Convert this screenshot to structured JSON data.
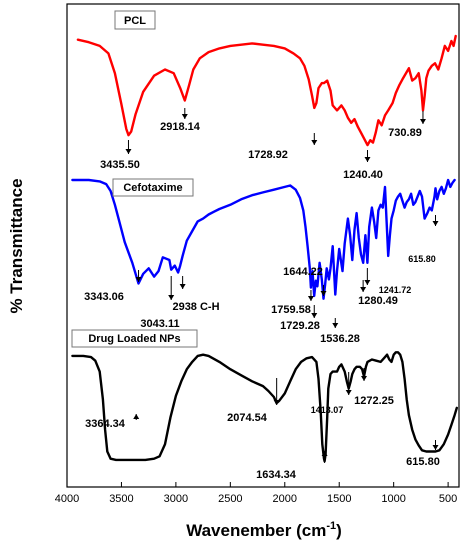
{
  "chart_data": {
    "type": "line",
    "title": "",
    "xlabel_main": "Wavenember (cm",
    "xlabel_sup": "-1",
    "xlabel_close": ")",
    "ylabel": "% Transmittance",
    "xlim": [
      4000,
      400
    ],
    "x_reversed": true,
    "x_ticks": [
      4000,
      3500,
      3000,
      2500,
      2000,
      1500,
      1000,
      500
    ],
    "grid": false,
    "series": [
      {
        "name": "PCL",
        "color": "#ff0000",
        "points": [
          [
            3900,
            97
          ],
          [
            3800,
            95
          ],
          [
            3700,
            92
          ],
          [
            3620,
            86
          ],
          [
            3560,
            70
          ],
          [
            3500,
            45
          ],
          [
            3455,
            25
          ],
          [
            3435,
            20
          ],
          [
            3410,
            23
          ],
          [
            3370,
            37
          ],
          [
            3300,
            55
          ],
          [
            3200,
            68
          ],
          [
            3100,
            73
          ],
          [
            3020,
            70
          ],
          [
            2960,
            58
          ],
          [
            2918,
            48
          ],
          [
            2880,
            60
          ],
          [
            2840,
            73
          ],
          [
            2780,
            82
          ],
          [
            2700,
            87
          ],
          [
            2600,
            90
          ],
          [
            2500,
            92
          ],
          [
            2400,
            93
          ],
          [
            2300,
            94
          ],
          [
            2200,
            93
          ],
          [
            2100,
            92
          ],
          [
            2000,
            90
          ],
          [
            1920,
            86
          ],
          [
            1860,
            82
          ],
          [
            1820,
            76
          ],
          [
            1780,
            65
          ],
          [
            1750,
            52
          ],
          [
            1729,
            42
          ],
          [
            1710,
            46
          ],
          [
            1690,
            58
          ],
          [
            1660,
            62
          ],
          [
            1640,
            62
          ],
          [
            1610,
            64
          ],
          [
            1580,
            56
          ],
          [
            1560,
            44
          ],
          [
            1520,
            40
          ],
          [
            1480,
            44
          ],
          [
            1450,
            40
          ],
          [
            1420,
            34
          ],
          [
            1390,
            30
          ],
          [
            1360,
            33
          ],
          [
            1330,
            27
          ],
          [
            1300,
            22
          ],
          [
            1270,
            17
          ],
          [
            1240,
            12
          ],
          [
            1215,
            16
          ],
          [
            1190,
            14
          ],
          [
            1165,
            22
          ],
          [
            1140,
            32
          ],
          [
            1110,
            28
          ],
          [
            1080,
            36
          ],
          [
            1050,
            40
          ],
          [
            1010,
            46
          ],
          [
            980,
            54
          ],
          [
            950,
            60
          ],
          [
            920,
            65
          ],
          [
            880,
            71
          ],
          [
            860,
            74
          ],
          [
            830,
            64
          ],
          [
            800,
            66
          ],
          [
            770,
            70
          ],
          [
            745,
            56
          ],
          [
            731,
            40
          ],
          [
            715,
            52
          ],
          [
            700,
            66
          ],
          [
            680,
            72
          ],
          [
            650,
            76
          ],
          [
            620,
            78
          ],
          [
            590,
            73
          ],
          [
            560,
            82
          ],
          [
            530,
            92
          ],
          [
            500,
            88
          ],
          [
            470,
            96
          ],
          [
            450,
            92
          ],
          [
            430,
            100
          ]
        ],
        "peaks": [
          {
            "x": 3435.5,
            "label": "3435.50"
          },
          {
            "x": 2918.14,
            "label": "2918.14"
          },
          {
            "x": 1728.92,
            "label": "1728.92"
          },
          {
            "x": 1240.4,
            "label": "1240.40"
          },
          {
            "x": 730.89,
            "label": "730.89"
          }
        ]
      },
      {
        "name": "Cefotaxime",
        "color": "#0000ff",
        "points": [
          [
            3950,
            100
          ],
          [
            3800,
            100
          ],
          [
            3700,
            99
          ],
          [
            3640,
            97
          ],
          [
            3600,
            92
          ],
          [
            3560,
            82
          ],
          [
            3520,
            70
          ],
          [
            3470,
            55
          ],
          [
            3400,
            40
          ],
          [
            3343,
            25
          ],
          [
            3300,
            32
          ],
          [
            3250,
            36
          ],
          [
            3200,
            30
          ],
          [
            3160,
            34
          ],
          [
            3120,
            44
          ],
          [
            3060,
            42
          ],
          [
            3043,
            35
          ],
          [
            3010,
            38
          ],
          [
            2980,
            33
          ],
          [
            2960,
            38
          ],
          [
            2938,
            45
          ],
          [
            2900,
            56
          ],
          [
            2850,
            63
          ],
          [
            2800,
            70
          ],
          [
            2750,
            72
          ],
          [
            2700,
            75
          ],
          [
            2650,
            77
          ],
          [
            2600,
            79
          ],
          [
            2500,
            82
          ],
          [
            2400,
            86
          ],
          [
            2300,
            89
          ],
          [
            2200,
            91
          ],
          [
            2100,
            93
          ],
          [
            2000,
            95
          ],
          [
            1950,
            96
          ],
          [
            1900,
            93
          ],
          [
            1860,
            87
          ],
          [
            1830,
            78
          ],
          [
            1810,
            66
          ],
          [
            1790,
            52
          ],
          [
            1770,
            36
          ],
          [
            1760,
            22
          ],
          [
            1745,
            34
          ],
          [
            1730,
            16
          ],
          [
            1715,
            27
          ],
          [
            1700,
            23
          ],
          [
            1680,
            40
          ],
          [
            1660,
            28
          ],
          [
            1644,
            14
          ],
          [
            1630,
            24
          ],
          [
            1615,
            36
          ],
          [
            1595,
            28
          ],
          [
            1580,
            36
          ],
          [
            1560,
            52
          ],
          [
            1536,
            17
          ],
          [
            1520,
            34
          ],
          [
            1500,
            50
          ],
          [
            1470,
            34
          ],
          [
            1450,
            54
          ],
          [
            1420,
            72
          ],
          [
            1400,
            60
          ],
          [
            1380,
            42
          ],
          [
            1360,
            64
          ],
          [
            1340,
            76
          ],
          [
            1320,
            58
          ],
          [
            1300,
            46
          ],
          [
            1280,
            40
          ],
          [
            1260,
            60
          ],
          [
            1241,
            40
          ],
          [
            1225,
            66
          ],
          [
            1200,
            80
          ],
          [
            1180,
            70
          ],
          [
            1160,
            58
          ],
          [
            1140,
            78
          ],
          [
            1120,
            82
          ],
          [
            1100,
            80
          ],
          [
            1080,
            95
          ],
          [
            1065,
            70
          ],
          [
            1050,
            45
          ],
          [
            1035,
            60
          ],
          [
            1020,
            72
          ],
          [
            1000,
            78
          ],
          [
            980,
            85
          ],
          [
            960,
            88
          ],
          [
            940,
            90
          ],
          [
            920,
            85
          ],
          [
            900,
            80
          ],
          [
            880,
            84
          ],
          [
            860,
            86
          ],
          [
            840,
            90
          ],
          [
            820,
            82
          ],
          [
            800,
            84
          ],
          [
            780,
            88
          ],
          [
            760,
            92
          ],
          [
            740,
            88
          ],
          [
            716,
            72
          ],
          [
            690,
            76
          ],
          [
            670,
            80
          ],
          [
            650,
            78
          ],
          [
            640,
            82
          ],
          [
            625,
            88
          ],
          [
            616,
            94
          ],
          [
            600,
            86
          ],
          [
            580,
            92
          ],
          [
            560,
            95
          ],
          [
            540,
            90
          ],
          [
            520,
            94
          ],
          [
            500,
            100
          ],
          [
            480,
            95
          ],
          [
            460,
            98
          ],
          [
            440,
            100
          ]
        ],
        "peaks": [
          {
            "x": 3343.06,
            "label": "3343.06"
          },
          {
            "x": 3043.11,
            "label": "3043.11"
          },
          {
            "x": 2938,
            "label": "2938 C-H"
          },
          {
            "x": 1759.58,
            "label": "1759.58"
          },
          {
            "x": 1729.28,
            "label": "1729.28"
          },
          {
            "x": 1644.22,
            "label": "1644.22"
          },
          {
            "x": 1536.28,
            "label": "1536.28"
          },
          {
            "x": 1280.49,
            "label": "1280.49"
          },
          {
            "x": 1241.72,
            "label": "1241.72"
          },
          {
            "x": 615.8,
            "label": "615.80"
          }
        ]
      },
      {
        "name": "Drug Loaded NPs",
        "color": "#000000",
        "points": [
          [
            3950,
            91
          ],
          [
            3850,
            91
          ],
          [
            3780,
            90
          ],
          [
            3740,
            87
          ],
          [
            3700,
            78
          ],
          [
            3670,
            55
          ],
          [
            3650,
            30
          ],
          [
            3630,
            12
          ],
          [
            3600,
            6
          ],
          [
            3550,
            5
          ],
          [
            3450,
            5
          ],
          [
            3364,
            5
          ],
          [
            3280,
            5
          ],
          [
            3200,
            6
          ],
          [
            3150,
            8
          ],
          [
            3100,
            18
          ],
          [
            3050,
            40
          ],
          [
            3000,
            58
          ],
          [
            2950,
            70
          ],
          [
            2900,
            80
          ],
          [
            2850,
            86
          ],
          [
            2800,
            91
          ],
          [
            2750,
            92
          ],
          [
            2700,
            91
          ],
          [
            2600,
            86
          ],
          [
            2500,
            80
          ],
          [
            2400,
            75
          ],
          [
            2300,
            70
          ],
          [
            2200,
            66
          ],
          [
            2150,
            62
          ],
          [
            2100,
            57
          ],
          [
            2075,
            52
          ],
          [
            2050,
            54
          ],
          [
            2000,
            60
          ],
          [
            1950,
            70
          ],
          [
            1900,
            80
          ],
          [
            1850,
            86
          ],
          [
            1800,
            89
          ],
          [
            1750,
            90
          ],
          [
            1710,
            86
          ],
          [
            1690,
            72
          ],
          [
            1670,
            45
          ],
          [
            1655,
            18
          ],
          [
            1640,
            6
          ],
          [
            1634,
            4
          ],
          [
            1625,
            10
          ],
          [
            1610,
            40
          ],
          [
            1600,
            64
          ],
          [
            1580,
            76
          ],
          [
            1560,
            78
          ],
          [
            1520,
            78
          ],
          [
            1500,
            82
          ],
          [
            1480,
            84
          ],
          [
            1450,
            78
          ],
          [
            1430,
            70
          ],
          [
            1413,
            64
          ],
          [
            1395,
            70
          ],
          [
            1380,
            76
          ],
          [
            1360,
            80
          ],
          [
            1340,
            82
          ],
          [
            1310,
            82
          ],
          [
            1290,
            80
          ],
          [
            1272,
            74
          ],
          [
            1255,
            82
          ],
          [
            1240,
            86
          ],
          [
            1200,
            88
          ],
          [
            1160,
            87
          ],
          [
            1120,
            86
          ],
          [
            1080,
            90
          ],
          [
            1060,
            92
          ],
          [
            1040,
            88
          ],
          [
            1020,
            86
          ],
          [
            1000,
            92
          ],
          [
            980,
            94
          ],
          [
            960,
            94
          ],
          [
            940,
            92
          ],
          [
            920,
            86
          ],
          [
            900,
            72
          ],
          [
            880,
            55
          ],
          [
            860,
            42
          ],
          [
            830,
            30
          ],
          [
            800,
            22
          ],
          [
            770,
            17
          ],
          [
            740,
            13
          ],
          [
            700,
            12
          ],
          [
            650,
            12
          ],
          [
            616,
            12
          ],
          [
            580,
            13
          ],
          [
            540,
            18
          ],
          [
            500,
            26
          ],
          [
            470,
            34
          ],
          [
            440,
            42
          ],
          [
            420,
            48
          ]
        ],
        "peaks": [
          {
            "x": 3364.34,
            "label": "3364.34"
          },
          {
            "x": 2074.54,
            "label": "2074.54"
          },
          {
            "x": 1634.34,
            "label": "1634.34"
          },
          {
            "x": 1413.07,
            "label": "1413.07"
          },
          {
            "x": 1272.25,
            "label": "1272.25"
          },
          {
            "x": 615.8,
            "label": "615.80"
          }
        ]
      }
    ]
  }
}
